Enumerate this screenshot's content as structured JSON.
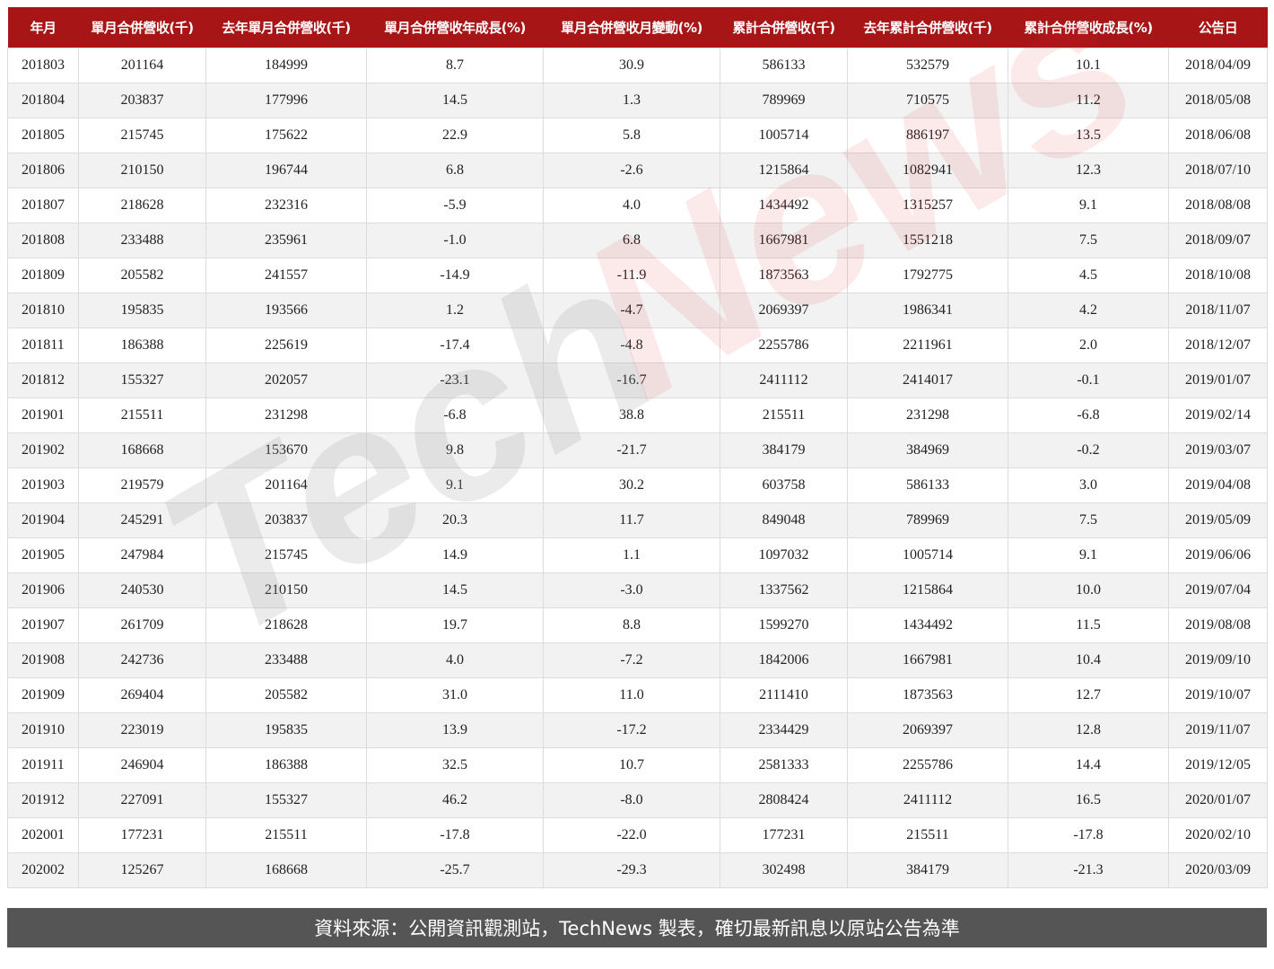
{
  "table": {
    "headers": [
      "年月",
      "單月合併營收(千)",
      "去年單月合併營收(千)",
      "單月合併營收年成長(%)",
      "單月合併營收月變動(%)",
      "累計合併營收(千)",
      "去年累計合併營收(千)",
      "累計合併營收成長(%)",
      "公告日"
    ],
    "rows": [
      [
        "201803",
        "201164",
        "184999",
        "8.7",
        "30.9",
        "586133",
        "532579",
        "10.1",
        "2018/04/09"
      ],
      [
        "201804",
        "203837",
        "177996",
        "14.5",
        "1.3",
        "789969",
        "710575",
        "11.2",
        "2018/05/08"
      ],
      [
        "201805",
        "215745",
        "175622",
        "22.9",
        "5.8",
        "1005714",
        "886197",
        "13.5",
        "2018/06/08"
      ],
      [
        "201806",
        "210150",
        "196744",
        "6.8",
        "-2.6",
        "1215864",
        "1082941",
        "12.3",
        "2018/07/10"
      ],
      [
        "201807",
        "218628",
        "232316",
        "-5.9",
        "4.0",
        "1434492",
        "1315257",
        "9.1",
        "2018/08/08"
      ],
      [
        "201808",
        "233488",
        "235961",
        "-1.0",
        "6.8",
        "1667981",
        "1551218",
        "7.5",
        "2018/09/07"
      ],
      [
        "201809",
        "205582",
        "241557",
        "-14.9",
        "-11.9",
        "1873563",
        "1792775",
        "4.5",
        "2018/10/08"
      ],
      [
        "201810",
        "195835",
        "193566",
        "1.2",
        "-4.7",
        "2069397",
        "1986341",
        "4.2",
        "2018/11/07"
      ],
      [
        "201811",
        "186388",
        "225619",
        "-17.4",
        "-4.8",
        "2255786",
        "2211961",
        "2.0",
        "2018/12/07"
      ],
      [
        "201812",
        "155327",
        "202057",
        "-23.1",
        "-16.7",
        "2411112",
        "2414017",
        "-0.1",
        "2019/01/07"
      ],
      [
        "201901",
        "215511",
        "231298",
        "-6.8",
        "38.8",
        "215511",
        "231298",
        "-6.8",
        "2019/02/14"
      ],
      [
        "201902",
        "168668",
        "153670",
        "9.8",
        "-21.7",
        "384179",
        "384969",
        "-0.2",
        "2019/03/07"
      ],
      [
        "201903",
        "219579",
        "201164",
        "9.1",
        "30.2",
        "603758",
        "586133",
        "3.0",
        "2019/04/08"
      ],
      [
        "201904",
        "245291",
        "203837",
        "20.3",
        "11.7",
        "849048",
        "789969",
        "7.5",
        "2019/05/09"
      ],
      [
        "201905",
        "247984",
        "215745",
        "14.9",
        "1.1",
        "1097032",
        "1005714",
        "9.1",
        "2019/06/06"
      ],
      [
        "201906",
        "240530",
        "210150",
        "14.5",
        "-3.0",
        "1337562",
        "1215864",
        "10.0",
        "2019/07/04"
      ],
      [
        "201907",
        "261709",
        "218628",
        "19.7",
        "8.8",
        "1599270",
        "1434492",
        "11.5",
        "2019/08/08"
      ],
      [
        "201908",
        "242736",
        "233488",
        "4.0",
        "-7.2",
        "1842006",
        "1667981",
        "10.4",
        "2019/09/10"
      ],
      [
        "201909",
        "269404",
        "205582",
        "31.0",
        "11.0",
        "2111410",
        "1873563",
        "12.7",
        "2019/10/07"
      ],
      [
        "201910",
        "223019",
        "195835",
        "13.9",
        "-17.2",
        "2334429",
        "2069397",
        "12.8",
        "2019/11/07"
      ],
      [
        "201911",
        "246904",
        "186388",
        "32.5",
        "10.7",
        "2581333",
        "2255786",
        "14.4",
        "2019/12/05"
      ],
      [
        "201912",
        "227091",
        "155327",
        "46.2",
        "-8.0",
        "2808424",
        "2411112",
        "16.5",
        "2020/01/07"
      ],
      [
        "202001",
        "177231",
        "215511",
        "-17.8",
        "-22.0",
        "177231",
        "215511",
        "-17.8",
        "2020/02/10"
      ],
      [
        "202002",
        "125267",
        "168668",
        "-25.7",
        "-29.3",
        "302498",
        "384179",
        "-21.3",
        "2020/03/09"
      ]
    ]
  },
  "footer": {
    "text": "資料來源：公開資訊觀測站，TechNews 製表，確切最新訊息以原站公告為準"
  },
  "watermark": {
    "part1": "Tech",
    "part2": "News"
  },
  "colors": {
    "header_bg": "#a81517",
    "footer_bg": "#555555",
    "row_alt": "#f2f2f2"
  }
}
